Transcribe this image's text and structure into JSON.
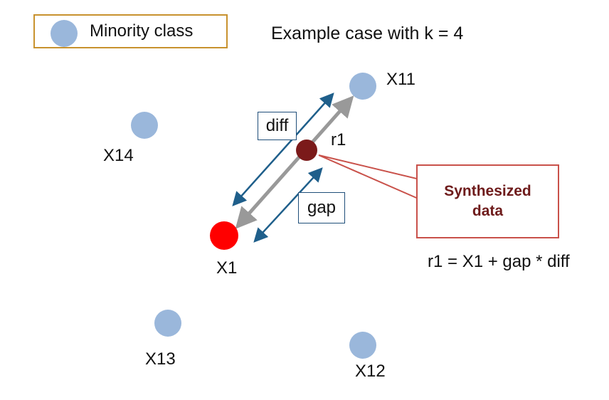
{
  "legend": {
    "label": "Minority class"
  },
  "title": "Example case with k = 4",
  "points": {
    "x1": "X1",
    "x11": "X11",
    "x12": "X12",
    "x13": "X13",
    "x14": "X14",
    "r1": "r1"
  },
  "labels": {
    "diff": "diff",
    "gap": "gap"
  },
  "callout": {
    "line1": "Synthesized",
    "line2": "data"
  },
  "formula": "r1 = X1 + gap * diff",
  "colors": {
    "minority": "#9ab7db",
    "x1": "#ff0000",
    "synthetic": "#7b1a1a",
    "arrow_gray": "#999999",
    "arrow_blue": "#1f5f8b",
    "callout_border": "#c9514a",
    "callout_text": "#6e1b1b",
    "legend_border": "#c8922e"
  }
}
